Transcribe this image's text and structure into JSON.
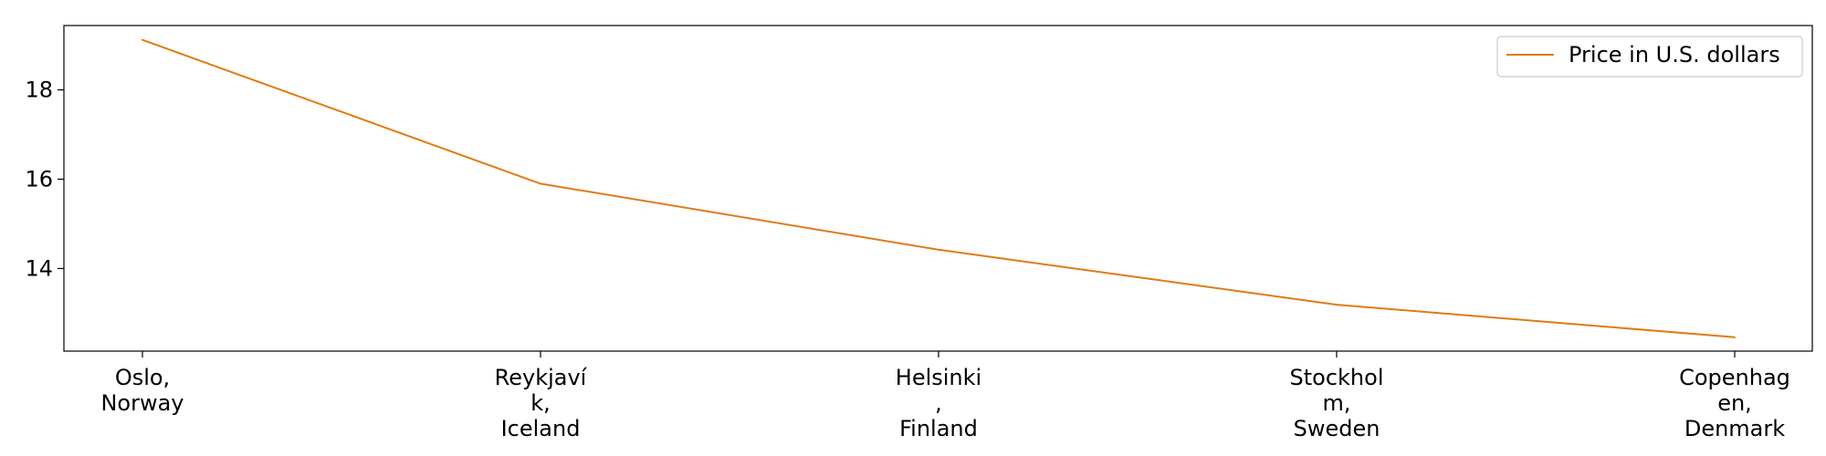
{
  "chart_data": {
    "type": "line",
    "categories": [
      [
        "Oslo,",
        "Norway"
      ],
      [
        "Reykjaví",
        "k,",
        "Iceland"
      ],
      [
        "Helsinki",
        ",",
        "Finland"
      ],
      [
        "Stockhol",
        "m,",
        "Sweden"
      ],
      [
        "Copenhag",
        "en,",
        "Denmark"
      ]
    ],
    "series": [
      {
        "name": "Price in U.S. dollars",
        "values": [
          19.12,
          15.9,
          14.42,
          13.19,
          12.46
        ],
        "color": "#e07b12"
      }
    ],
    "yticks": [
      14,
      16,
      18
    ],
    "ylim": [
      12.15,
      19.44
    ],
    "grid": false,
    "legend_position": "top-right"
  }
}
